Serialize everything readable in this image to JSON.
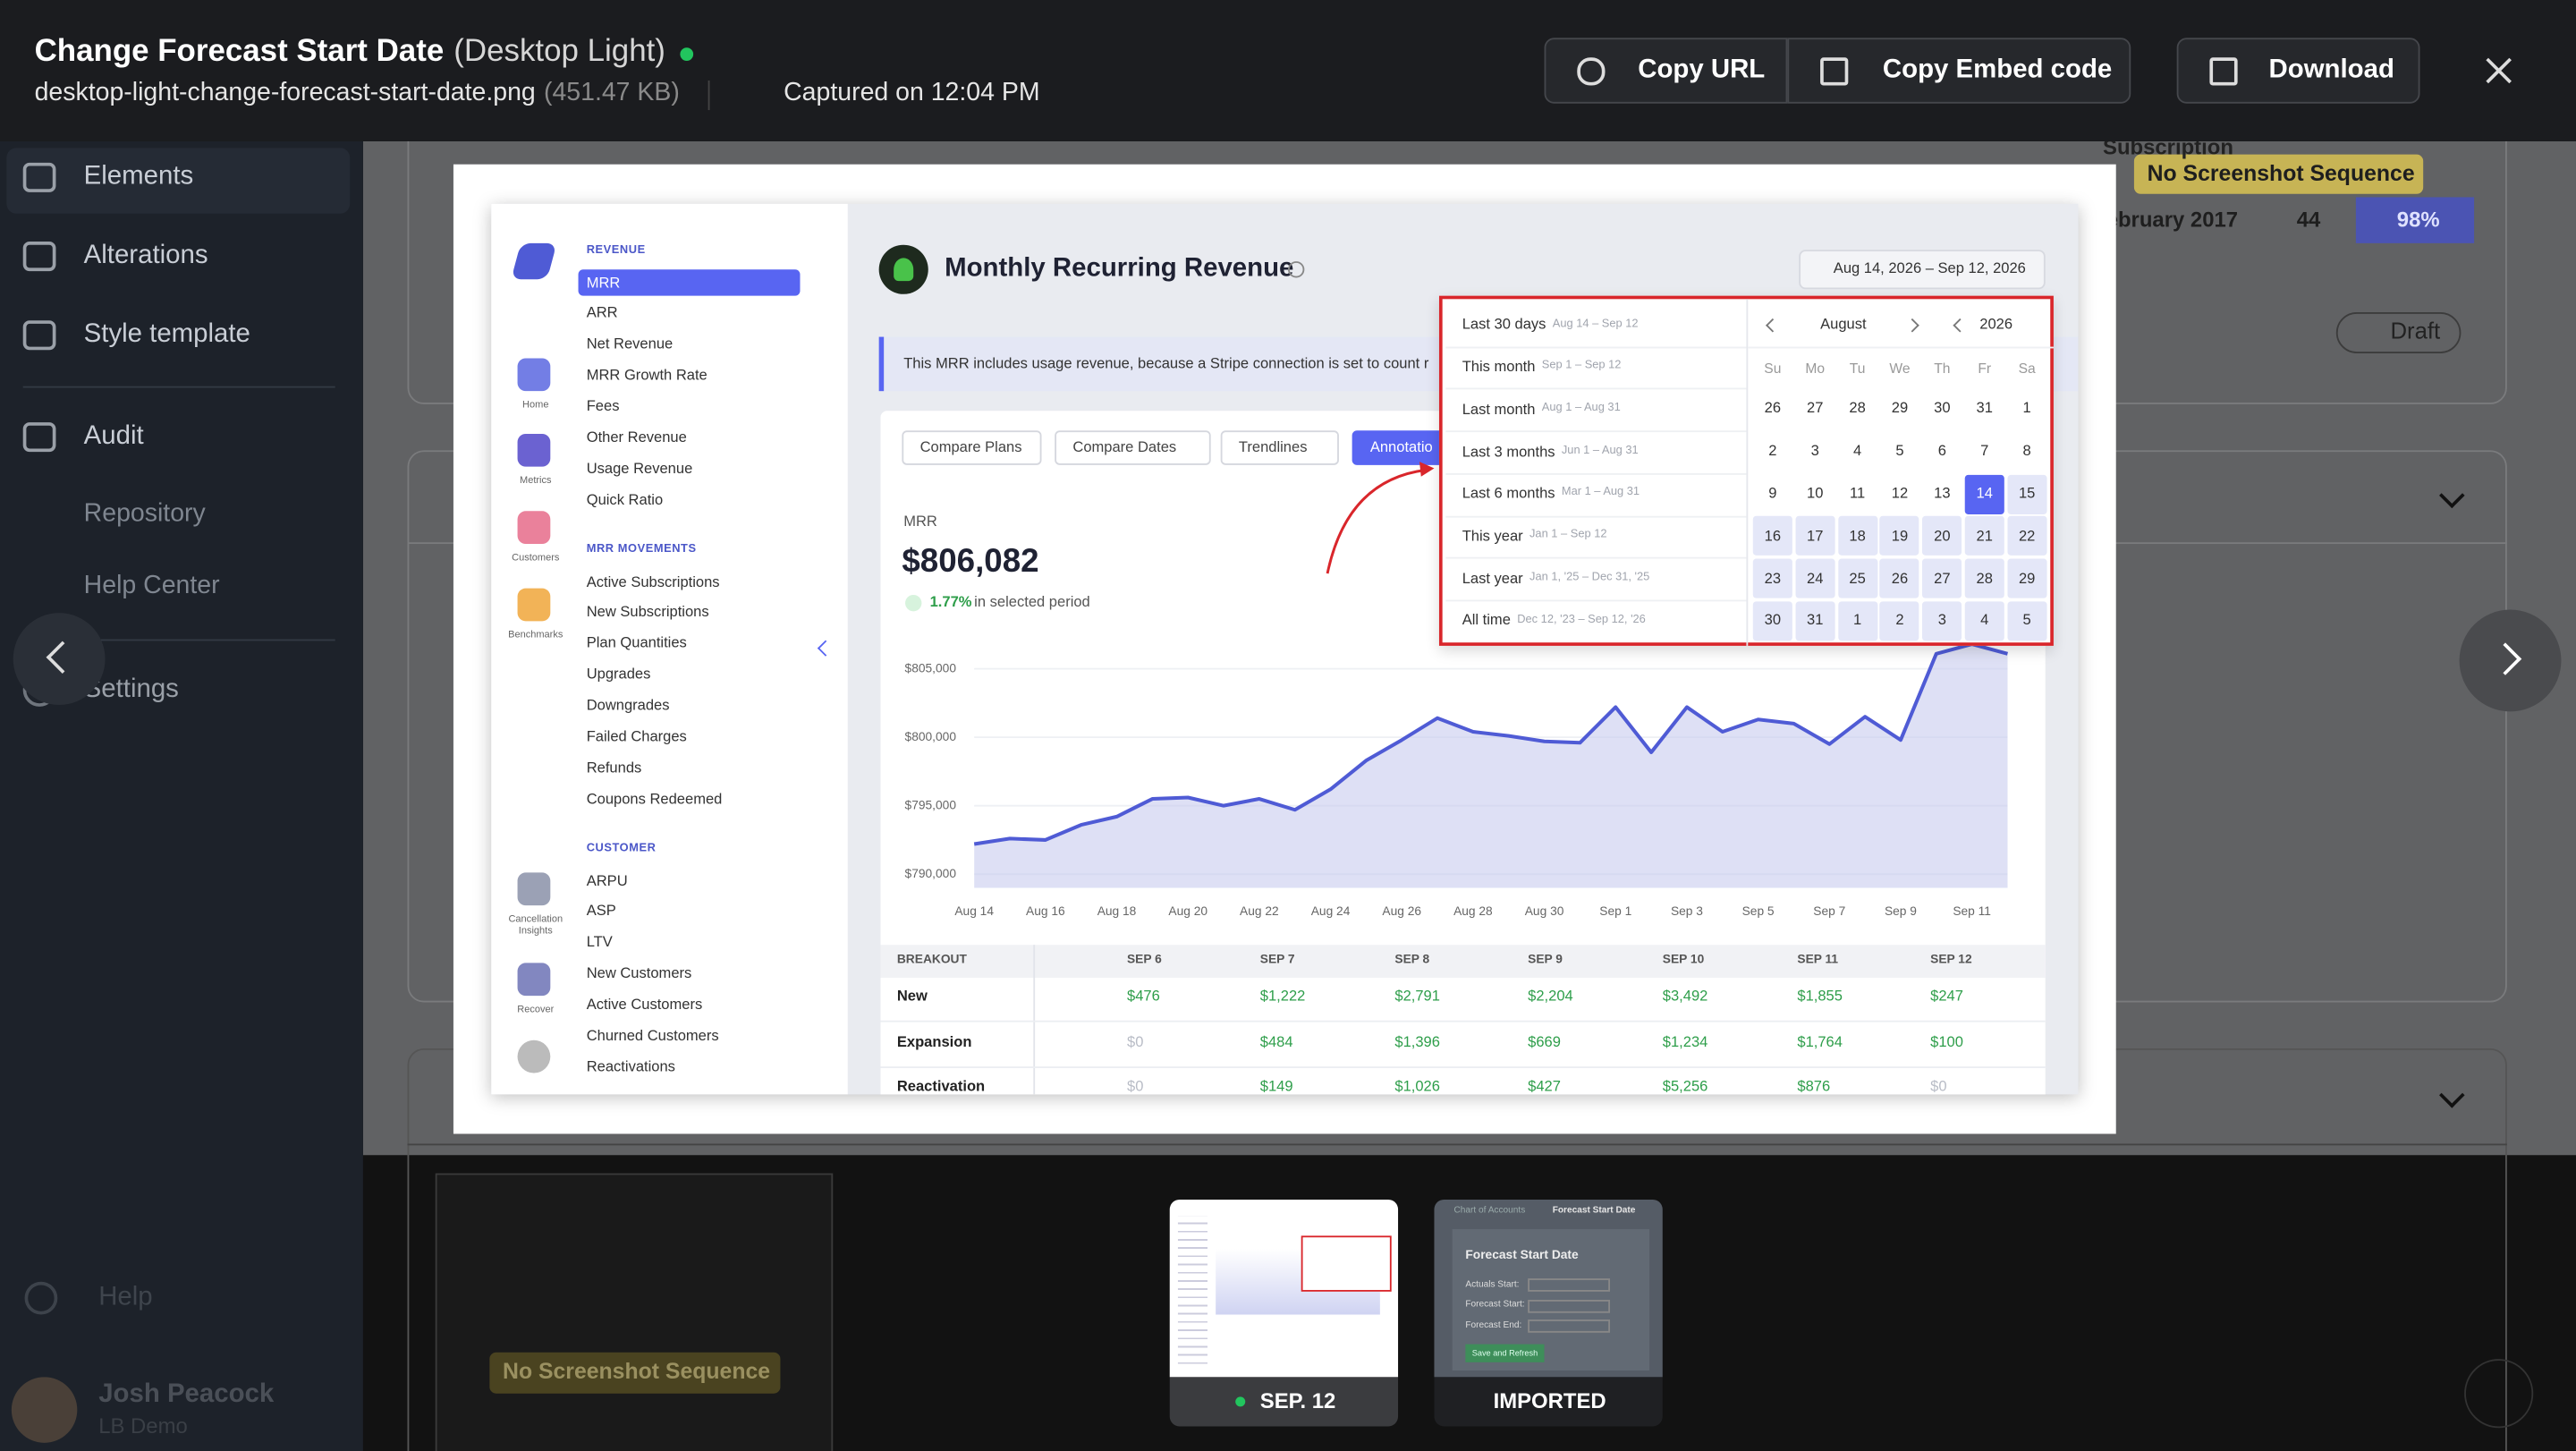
{
  "header": {
    "title": "Change Forecast Start Date",
    "variant": "(Desktop Light)",
    "filename": "desktop-light-change-forecast-start-date.png",
    "filesize": "(451.47 KB)",
    "captured": "Captured on 12:04 PM",
    "actions": [
      "Copy URL",
      "Copy Embed code",
      "Download"
    ]
  },
  "sidebar": {
    "items": [
      "Elements",
      "Alterations",
      "Style template",
      "Audit"
    ],
    "subitems": [
      "Repository",
      "Help Center"
    ],
    "settings": "Settings",
    "help": "Help",
    "user": {
      "name": "Josh Peacock",
      "org": "LB Demo"
    }
  },
  "background": {
    "badges": [
      "No Screenshot Sequence",
      "No Screenshot Sequence"
    ],
    "subscription": "Subscription",
    "month": "ebruary 2017",
    "count": 44,
    "percent": "98%",
    "draft": "Draft"
  },
  "screenshot": {
    "nav_icons": [
      "Home",
      "Metrics",
      "Customers",
      "Benchmarks",
      "Cancellation Insights",
      "Recover"
    ],
    "sections": [
      {
        "heading": "REVENUE",
        "items": [
          "MRR",
          "ARR",
          "Net Revenue",
          "MRR Growth Rate",
          "Fees",
          "Other Revenue",
          "Usage Revenue",
          "Quick Ratio"
        ]
      },
      {
        "heading": "MRR MOVEMENTS",
        "items": [
          "Active Subscriptions",
          "New Subscriptions",
          "Plan Quantities",
          "Upgrades",
          "Downgrades",
          "Failed Charges",
          "Refunds",
          "Coupons Redeemed"
        ]
      },
      {
        "heading": "CUSTOMER",
        "items": [
          "ARPU",
          "ASP",
          "LTV",
          "New Customers",
          "Active Customers",
          "Churned Customers",
          "Reactivations"
        ]
      }
    ],
    "title": "Monthly Recurring Revenue",
    "date_range": "Aug 14, 2026 – Sep 12, 2026",
    "banner": "This MRR includes usage revenue, because a Stripe connection is set to count r",
    "buttons": [
      "Compare Plans",
      "Compare Dates",
      "Trendlines",
      "Annotatio"
    ],
    "chart": {
      "label": "MRR",
      "value": "$806,082",
      "change": "1.77%",
      "change_text": "in selected period",
      "ylim": [
        789000,
        808000
      ],
      "yticks": [
        {
          "value": 805000,
          "label": "$805,000"
        },
        {
          "value": 800000,
          "label": "$800,000"
        },
        {
          "value": 795000,
          "label": "$795,000"
        },
        {
          "value": 790000,
          "label": "$790,000"
        }
      ],
      "x_labels": [
        "Aug 14",
        "Aug 16",
        "Aug 18",
        "Aug 20",
        "Aug 22",
        "Aug 24",
        "Aug 26",
        "Aug 28",
        "Aug 30",
        "Sep 1",
        "Sep 3",
        "Sep 5",
        "Sep 7",
        "Sep 9",
        "Sep 11"
      ],
      "values": [
        792200,
        792600,
        792500,
        793600,
        794200,
        795500,
        795600,
        795000,
        795500,
        794700,
        796200,
        798300,
        799800,
        801400,
        800400,
        800100,
        799700,
        799600,
        802200,
        798900,
        802200,
        800400,
        801300,
        801000,
        799500,
        801500,
        799800,
        806100,
        806800,
        806100
      ],
      "color": "#4f5bd5"
    },
    "picker": {
      "presets": [
        {
          "label": "Last 30 days",
          "range": "Aug 14 – Sep 12"
        },
        {
          "label": "This month",
          "range": "Sep 1 – Sep 12"
        },
        {
          "label": "Last month",
          "range": "Aug 1 – Aug 31"
        },
        {
          "label": "Last 3 months",
          "range": "Jun 1 – Aug 31"
        },
        {
          "label": "Last 6 months",
          "range": "Mar 1 – Aug 31"
        },
        {
          "label": "This year",
          "range": "Jan 1 – Sep 12"
        },
        {
          "label": "Last year",
          "range": "Jan 1, '25 – Dec 31, '25"
        },
        {
          "label": "All time",
          "range": "Dec 12, '23 – Sep 12, '26"
        }
      ],
      "month": "August",
      "year": 2026,
      "weekdays": [
        "Su",
        "Mo",
        "Tu",
        "We",
        "Th",
        "Fr",
        "Sa"
      ],
      "weeks": [
        [
          26,
          27,
          28,
          29,
          30,
          31,
          1
        ],
        [
          2,
          3,
          4,
          5,
          6,
          7,
          8
        ],
        [
          9,
          10,
          11,
          12,
          13,
          14,
          15
        ],
        [
          16,
          17,
          18,
          19,
          20,
          21,
          22
        ],
        [
          23,
          24,
          25,
          26,
          27,
          28,
          29
        ],
        [
          30,
          31,
          1,
          2,
          3,
          4,
          5
        ]
      ],
      "selected_day": 14
    },
    "breakout": {
      "header": "BREAKOUT",
      "columns": [
        "SEP 6",
        "SEP 7",
        "SEP 8",
        "SEP 9",
        "SEP 10",
        "SEP 11",
        "SEP 12"
      ],
      "rows": [
        {
          "name": "New",
          "values": [
            "$476",
            "$1,222",
            "$2,791",
            "$2,204",
            "$3,492",
            "$1,855",
            "$247"
          ]
        },
        {
          "name": "Expansion",
          "values": [
            "$0",
            "$484",
            "$1,396",
            "$669",
            "$1,234",
            "$1,764",
            "$100"
          ]
        },
        {
          "name": "Reactivation",
          "values": [
            "$0",
            "$149",
            "$1,026",
            "$427",
            "$5,256",
            "$876",
            "$0"
          ]
        }
      ]
    }
  },
  "thumbnails": [
    {
      "label": "SEP. 12"
    },
    {
      "label": "IMPORTED",
      "tabs": [
        "Chart of Accounts",
        "Forecast Start Date"
      ],
      "heading": "Forecast Start Date",
      "fields": [
        "Actuals Start:",
        "Forecast Start:",
        "Forecast End:"
      ],
      "button": "Save and Refresh"
    }
  ]
}
